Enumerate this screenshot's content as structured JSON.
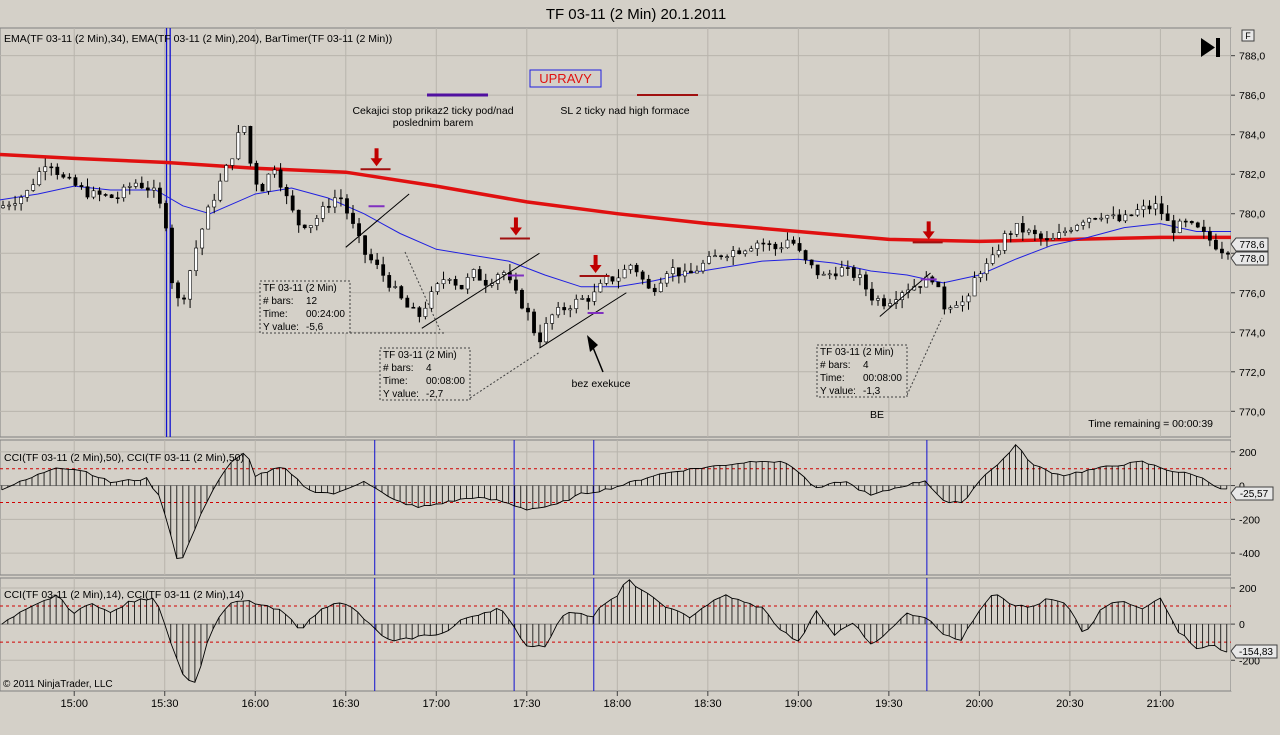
{
  "title": "TF 03-11 (2 Min)  20.1.2011",
  "price_panel": {
    "indicator_label": "EMA(TF 03-11 (2 Min),34), EMA(TF 03-11 (2 Min),204), BarTimer(TF 03-11 (2 Min))",
    "time_remaining": "Time remaining = 00:00:39",
    "price_labels": [
      "778,6",
      "778,0"
    ],
    "legend_text_1": "Cekajici stop prikaz2 ticky pod/nad",
    "legend_text_2": "poslednim  barem",
    "legend_text_3": "SL 2 ticky nad high formace",
    "upravy": "UPRAVY",
    "bez_exekuce": "bez exekuce",
    "be": "BE",
    "f_button": "F"
  },
  "info_boxes": [
    {
      "title": "TF 03-11 (2 Min)",
      "bars_label": "# bars:",
      "bars": "12",
      "time_label": "Time:",
      "time": "00:24:00",
      "y_label": "Y value:",
      "y": "-5,6"
    },
    {
      "title": "TF 03-11 (2 Min)",
      "bars_label": "# bars:",
      "bars": "4",
      "time_label": "Time:",
      "time": "00:08:00",
      "y_label": "Y value:",
      "y": "-2,7"
    },
    {
      "title": "TF 03-11 (2 Min)",
      "bars_label": "# bars:",
      "bars": "4",
      "time_label": "Time:",
      "time": "00:08:00",
      "y_label": "Y value:",
      "y": "-1,3"
    }
  ],
  "cci50_panel": {
    "label": "CCI(TF 03-11 (2 Min),50), CCI(TF 03-11 (2 Min),50)",
    "last_value": "-25,57"
  },
  "cci14_panel": {
    "label": "CCI(TF 03-11 (2 Min),14), CCI(TF 03-11 (2 Min),14)",
    "last_value": "-154,83"
  },
  "copyright": "© 2011 NinjaTrader, LLC",
  "colors": {
    "background": "#d4d0c8",
    "ema34": "#2020e0",
    "ema204": "#e01010",
    "marker": "#c00000",
    "vline": "#1010d0",
    "cci_level": "#d00000"
  },
  "chart_data": {
    "type": "candlestick",
    "x_tick_labels": [
      "15:00",
      "15:30",
      "16:00",
      "16:30",
      "17:00",
      "17:30",
      "18:00",
      "18:30",
      "19:00",
      "19:30",
      "20:00",
      "20:30",
      "21:00"
    ],
    "x_tick_hours": [
      15.0,
      15.5,
      16.0,
      16.5,
      17.0,
      17.5,
      18.0,
      18.5,
      19.0,
      19.5,
      20.0,
      20.5,
      21.0
    ],
    "x_range": [
      14.59,
      21.39
    ],
    "price_axis": {
      "ticks": [
        "788,0",
        "786,0",
        "784,0",
        "782,0",
        "780,0",
        "778,0",
        "776,0",
        "774,0",
        "772,0",
        "770,0"
      ],
      "tick_values": [
        788,
        786,
        784,
        782,
        780,
        778,
        776,
        774,
        772,
        770
      ],
      "range": [
        768.7,
        789.4
      ]
    },
    "cci50_axis": {
      "ticks": [
        "200",
        "0",
        "-200",
        "-400"
      ],
      "tick_values": [
        200,
        0,
        -200,
        -400
      ],
      "range": [
        -530,
        270
      ],
      "levels": [
        100,
        -100
      ]
    },
    "cci14_axis": {
      "ticks": [
        "200",
        "0",
        "-200"
      ],
      "tick_values": [
        200,
        0,
        -200
      ],
      "range": [
        -370,
        255
      ],
      "levels": [
        100,
        -100
      ]
    },
    "price_path": [
      [
        14.6,
        780.3
      ],
      [
        14.75,
        781.0
      ],
      [
        14.87,
        782.8
      ],
      [
        14.95,
        781.8
      ],
      [
        15.1,
        781.0
      ],
      [
        15.25,
        780.8
      ],
      [
        15.35,
        781.6
      ],
      [
        15.45,
        781.2
      ],
      [
        15.52,
        779.8
      ],
      [
        15.57,
        775.5
      ],
      [
        15.62,
        775.8
      ],
      [
        15.68,
        778.0
      ],
      [
        15.75,
        780.0
      ],
      [
        15.82,
        781.5
      ],
      [
        15.9,
        783.2
      ],
      [
        15.95,
        784.8
      ],
      [
        16.0,
        782.0
      ],
      [
        16.05,
        781.2
      ],
      [
        16.12,
        782.5
      ],
      [
        16.18,
        781.0
      ],
      [
        16.25,
        779.5
      ],
      [
        16.33,
        779.5
      ],
      [
        16.42,
        780.5
      ],
      [
        16.48,
        781.0
      ],
      [
        16.55,
        779.5
      ],
      [
        16.62,
        778.0
      ],
      [
        16.7,
        777.2
      ],
      [
        16.78,
        776.2
      ],
      [
        16.85,
        775.3
      ],
      [
        16.92,
        774.8
      ],
      [
        17.0,
        776.0
      ],
      [
        17.08,
        777.0
      ],
      [
        17.15,
        776.2
      ],
      [
        17.22,
        777.0
      ],
      [
        17.3,
        776.5
      ],
      [
        17.38,
        777.2
      ],
      [
        17.45,
        776.0
      ],
      [
        17.52,
        775.0
      ],
      [
        17.58,
        773.5
      ],
      [
        17.65,
        774.8
      ],
      [
        17.72,
        775.2
      ],
      [
        17.8,
        775.6
      ],
      [
        17.88,
        775.8
      ],
      [
        17.95,
        776.6
      ],
      [
        18.02,
        776.8
      ],
      [
        18.1,
        777.5
      ],
      [
        18.2,
        776.0
      ],
      [
        18.3,
        777.3
      ],
      [
        18.4,
        776.8
      ],
      [
        18.5,
        777.5
      ],
      [
        18.6,
        778.0
      ],
      [
        18.7,
        778.2
      ],
      [
        18.8,
        778.6
      ],
      [
        18.9,
        778.2
      ],
      [
        18.97,
        778.8
      ],
      [
        19.05,
        777.6
      ],
      [
        19.15,
        776.8
      ],
      [
        19.25,
        777.2
      ],
      [
        19.35,
        776.8
      ],
      [
        19.42,
        775.8
      ],
      [
        19.5,
        775.5
      ],
      [
        19.6,
        776.2
      ],
      [
        19.7,
        776.5
      ],
      [
        19.76,
        776.8
      ],
      [
        19.82,
        775.3
      ],
      [
        19.9,
        775.6
      ],
      [
        19.95,
        775.4
      ],
      [
        20.0,
        777.0
      ],
      [
        20.08,
        777.5
      ],
      [
        20.15,
        778.8
      ],
      [
        20.22,
        779.3
      ],
      [
        20.3,
        779.0
      ],
      [
        20.4,
        778.5
      ],
      [
        20.5,
        779.2
      ],
      [
        20.6,
        779.8
      ],
      [
        20.7,
        780.0
      ],
      [
        20.8,
        779.6
      ],
      [
        20.9,
        780.2
      ],
      [
        21.0,
        780.4
      ],
      [
        21.08,
        779.2
      ],
      [
        21.15,
        779.5
      ],
      [
        21.22,
        779.2
      ],
      [
        21.3,
        778.6
      ],
      [
        21.35,
        778.2
      ]
    ],
    "ema34": [
      [
        14.59,
        780.7
      ],
      [
        14.8,
        781.0
      ],
      [
        15.0,
        781.4
      ],
      [
        15.2,
        781.2
      ],
      [
        15.45,
        781.2
      ],
      [
        15.6,
        780.4
      ],
      [
        15.75,
        780.0
      ],
      [
        16.0,
        781.0
      ],
      [
        16.2,
        781.3
      ],
      [
        16.4,
        780.8
      ],
      [
        16.6,
        780.0
      ],
      [
        16.8,
        779.0
      ],
      [
        17.0,
        778.2
      ],
      [
        17.2,
        777.9
      ],
      [
        17.4,
        777.6
      ],
      [
        17.6,
        776.9
      ],
      [
        17.8,
        776.3
      ],
      [
        18.0,
        776.3
      ],
      [
        18.2,
        776.6
      ],
      [
        18.4,
        777.0
      ],
      [
        18.6,
        777.3
      ],
      [
        18.8,
        777.6
      ],
      [
        19.0,
        777.7
      ],
      [
        19.2,
        777.5
      ],
      [
        19.4,
        777.1
      ],
      [
        19.6,
        776.9
      ],
      [
        19.8,
        776.5
      ],
      [
        20.0,
        776.9
      ],
      [
        20.2,
        777.7
      ],
      [
        20.4,
        778.4
      ],
      [
        20.6,
        778.8
      ],
      [
        20.8,
        779.3
      ],
      [
        21.0,
        779.5
      ],
      [
        21.2,
        779.1
      ],
      [
        21.39,
        779.1
      ]
    ],
    "ema204": [
      [
        14.59,
        783.0
      ],
      [
        15.0,
        782.8
      ],
      [
        15.5,
        782.6
      ],
      [
        16.0,
        782.3
      ],
      [
        16.5,
        782.1
      ],
      [
        17.0,
        781.4
      ],
      [
        17.5,
        780.6
      ],
      [
        18.0,
        780.0
      ],
      [
        18.5,
        779.5
      ],
      [
        19.0,
        779.1
      ],
      [
        19.5,
        778.7
      ],
      [
        20.0,
        778.6
      ],
      [
        20.5,
        778.7
      ],
      [
        21.0,
        778.8
      ],
      [
        21.39,
        778.8
      ]
    ],
    "annotation_vlines_hours": [
      15.51,
      15.53
    ],
    "cci_vlines_hours": [
      16.66,
      17.43,
      17.87,
      19.71
    ],
    "sell_arrows": [
      [
        16.67,
        782.3
      ],
      [
        17.44,
        778.8
      ],
      [
        17.88,
        776.9
      ],
      [
        19.72,
        778.6
      ]
    ],
    "trend_lines": [
      [
        16.5,
        778.3,
        16.85,
        781.0
      ],
      [
        16.92,
        774.2,
        17.57,
        778.0
      ],
      [
        17.57,
        773.2,
        18.05,
        776.0
      ],
      [
        19.45,
        774.8,
        19.73,
        777.0
      ]
    ],
    "cci50_path": [
      [
        14.6,
        -20
      ],
      [
        14.75,
        40
      ],
      [
        14.9,
        110
      ],
      [
        15.05,
        90
      ],
      [
        15.2,
        20
      ],
      [
        15.4,
        40
      ],
      [
        15.48,
        -80
      ],
      [
        15.58,
        -480
      ],
      [
        15.65,
        -300
      ],
      [
        15.75,
        -50
      ],
      [
        15.85,
        120
      ],
      [
        15.95,
        200
      ],
      [
        16.0,
        60
      ],
      [
        16.15,
        110
      ],
      [
        16.3,
        -30
      ],
      [
        16.45,
        -50
      ],
      [
        16.6,
        30
      ],
      [
        16.75,
        -80
      ],
      [
        16.9,
        -130
      ],
      [
        17.05,
        -100
      ],
      [
        17.2,
        -70
      ],
      [
        17.35,
        -90
      ],
      [
        17.5,
        -140
      ],
      [
        17.65,
        -120
      ],
      [
        17.8,
        -50
      ],
      [
        17.95,
        -20
      ],
      [
        18.05,
        10
      ],
      [
        18.2,
        60
      ],
      [
        18.35,
        90
      ],
      [
        18.5,
        110
      ],
      [
        18.65,
        130
      ],
      [
        18.8,
        150
      ],
      [
        18.95,
        130
      ],
      [
        19.1,
        -20
      ],
      [
        19.25,
        30
      ],
      [
        19.4,
        -60
      ],
      [
        19.55,
        -10
      ],
      [
        19.7,
        30
      ],
      [
        19.82,
        -110
      ],
      [
        19.92,
        -90
      ],
      [
        20.02,
        60
      ],
      [
        20.1,
        120
      ],
      [
        20.2,
        240
      ],
      [
        20.3,
        120
      ],
      [
        20.45,
        60
      ],
      [
        20.6,
        90
      ],
      [
        20.75,
        120
      ],
      [
        20.9,
        140
      ],
      [
        21.05,
        90
      ],
      [
        21.2,
        60
      ],
      [
        21.35,
        -25
      ]
    ],
    "cci14_path": [
      [
        14.6,
        0
      ],
      [
        14.7,
        60
      ],
      [
        14.8,
        110
      ],
      [
        14.9,
        160
      ],
      [
        15.0,
        60
      ],
      [
        15.1,
        120
      ],
      [
        15.2,
        60
      ],
      [
        15.3,
        120
      ],
      [
        15.45,
        150
      ],
      [
        15.52,
        -60
      ],
      [
        15.6,
        -280
      ],
      [
        15.67,
        -330
      ],
      [
        15.75,
        -50
      ],
      [
        15.85,
        110
      ],
      [
        15.95,
        130
      ],
      [
        16.05,
        100
      ],
      [
        16.15,
        70
      ],
      [
        16.25,
        -30
      ],
      [
        16.35,
        70
      ],
      [
        16.45,
        130
      ],
      [
        16.55,
        80
      ],
      [
        16.65,
        -20
      ],
      [
        16.75,
        -100
      ],
      [
        16.85,
        -80
      ],
      [
        16.95,
        -60
      ],
      [
        17.05,
        -50
      ],
      [
        17.15,
        30
      ],
      [
        17.25,
        60
      ],
      [
        17.35,
        90
      ],
      [
        17.43,
        -20
      ],
      [
        17.5,
        -120
      ],
      [
        17.6,
        -120
      ],
      [
        17.7,
        50
      ],
      [
        17.78,
        70
      ],
      [
        17.86,
        40
      ],
      [
        17.92,
        110
      ],
      [
        18.0,
        150
      ],
      [
        18.05,
        250
      ],
      [
        18.12,
        200
      ],
      [
        18.2,
        140
      ],
      [
        18.3,
        80
      ],
      [
        18.4,
        40
      ],
      [
        18.5,
        110
      ],
      [
        18.6,
        160
      ],
      [
        18.7,
        120
      ],
      [
        18.8,
        90
      ],
      [
        18.9,
        -30
      ],
      [
        19.0,
        -100
      ],
      [
        19.1,
        70
      ],
      [
        19.2,
        -60
      ],
      [
        19.3,
        10
      ],
      [
        19.4,
        -110
      ],
      [
        19.5,
        -40
      ],
      [
        19.6,
        60
      ],
      [
        19.7,
        40
      ],
      [
        19.8,
        -50
      ],
      [
        19.9,
        -90
      ],
      [
        20.0,
        80
      ],
      [
        20.08,
        180
      ],
      [
        20.18,
        110
      ],
      [
        20.28,
        90
      ],
      [
        20.38,
        140
      ],
      [
        20.48,
        110
      ],
      [
        20.58,
        -60
      ],
      [
        20.68,
        90
      ],
      [
        20.78,
        130
      ],
      [
        20.9,
        80
      ],
      [
        21.0,
        150
      ],
      [
        21.1,
        -40
      ],
      [
        21.2,
        -130
      ],
      [
        21.3,
        -120
      ],
      [
        21.35,
        -155
      ]
    ]
  }
}
